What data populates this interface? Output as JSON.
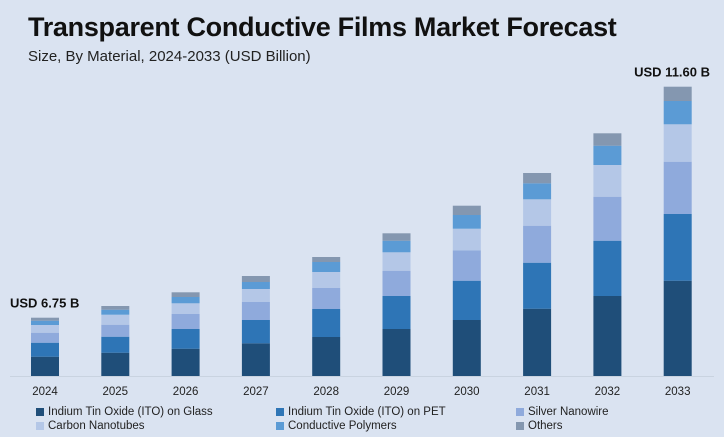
{
  "chart_data": {
    "type": "bar",
    "stacked": true,
    "title": "Transparent Conductive Films Market Forecast",
    "subtitle": "Size, By Material, 2024-2033 (USD Billion)",
    "xlabel": "",
    "ylabel": "",
    "grid": false,
    "legend_position": "bottom",
    "value_note": "segment values are relative heights estimated from the bars (no y-axis shown)",
    "ylim": [
      0,
      290
    ],
    "categories": [
      "2024",
      "2025",
      "2026",
      "2027",
      "2028",
      "2029",
      "2030",
      "2031",
      "2032",
      "2033"
    ],
    "series": [
      {
        "name": "Indium Tin Oxide (ITO) on Glass",
        "color": "#1f4e79",
        "values": [
          19.3,
          23.3,
          27.3,
          32.7,
          39,
          47,
          56,
          67.3,
          80,
          95.3
        ]
      },
      {
        "name": "Indium Tin Oxide (ITO) on PET",
        "color": "#2e75b6",
        "values": [
          14,
          16,
          19.7,
          23.3,
          28,
          33,
          39.3,
          46,
          55.3,
          66.7
        ]
      },
      {
        "name": "Silver Nanowire",
        "color": "#8faadc",
        "values": [
          10,
          12,
          15,
          18,
          21,
          25.3,
          30.4,
          37,
          44,
          52.3
        ]
      },
      {
        "name": "Carbon Nanotubes",
        "color": "#b4c7e7",
        "values": [
          7.7,
          10,
          10.7,
          13,
          16,
          18.4,
          21.6,
          26.4,
          31.7,
          37.4
        ]
      },
      {
        "name": "Conductive Polymers",
        "color": "#5b9bd5",
        "values": [
          4.3,
          5,
          6.3,
          7,
          10,
          11.6,
          13.7,
          16,
          19.3,
          23.3
        ]
      },
      {
        "name": "Others",
        "color": "#8497b0",
        "values": [
          3,
          3.7,
          4.7,
          6,
          5,
          7.4,
          9.3,
          10.3,
          12.4,
          14.3
        ]
      }
    ],
    "annotations": [
      {
        "category": "2024",
        "text": "USD 6.75 B"
      },
      {
        "category": "2033",
        "text": "USD 11.60 B"
      }
    ]
  }
}
